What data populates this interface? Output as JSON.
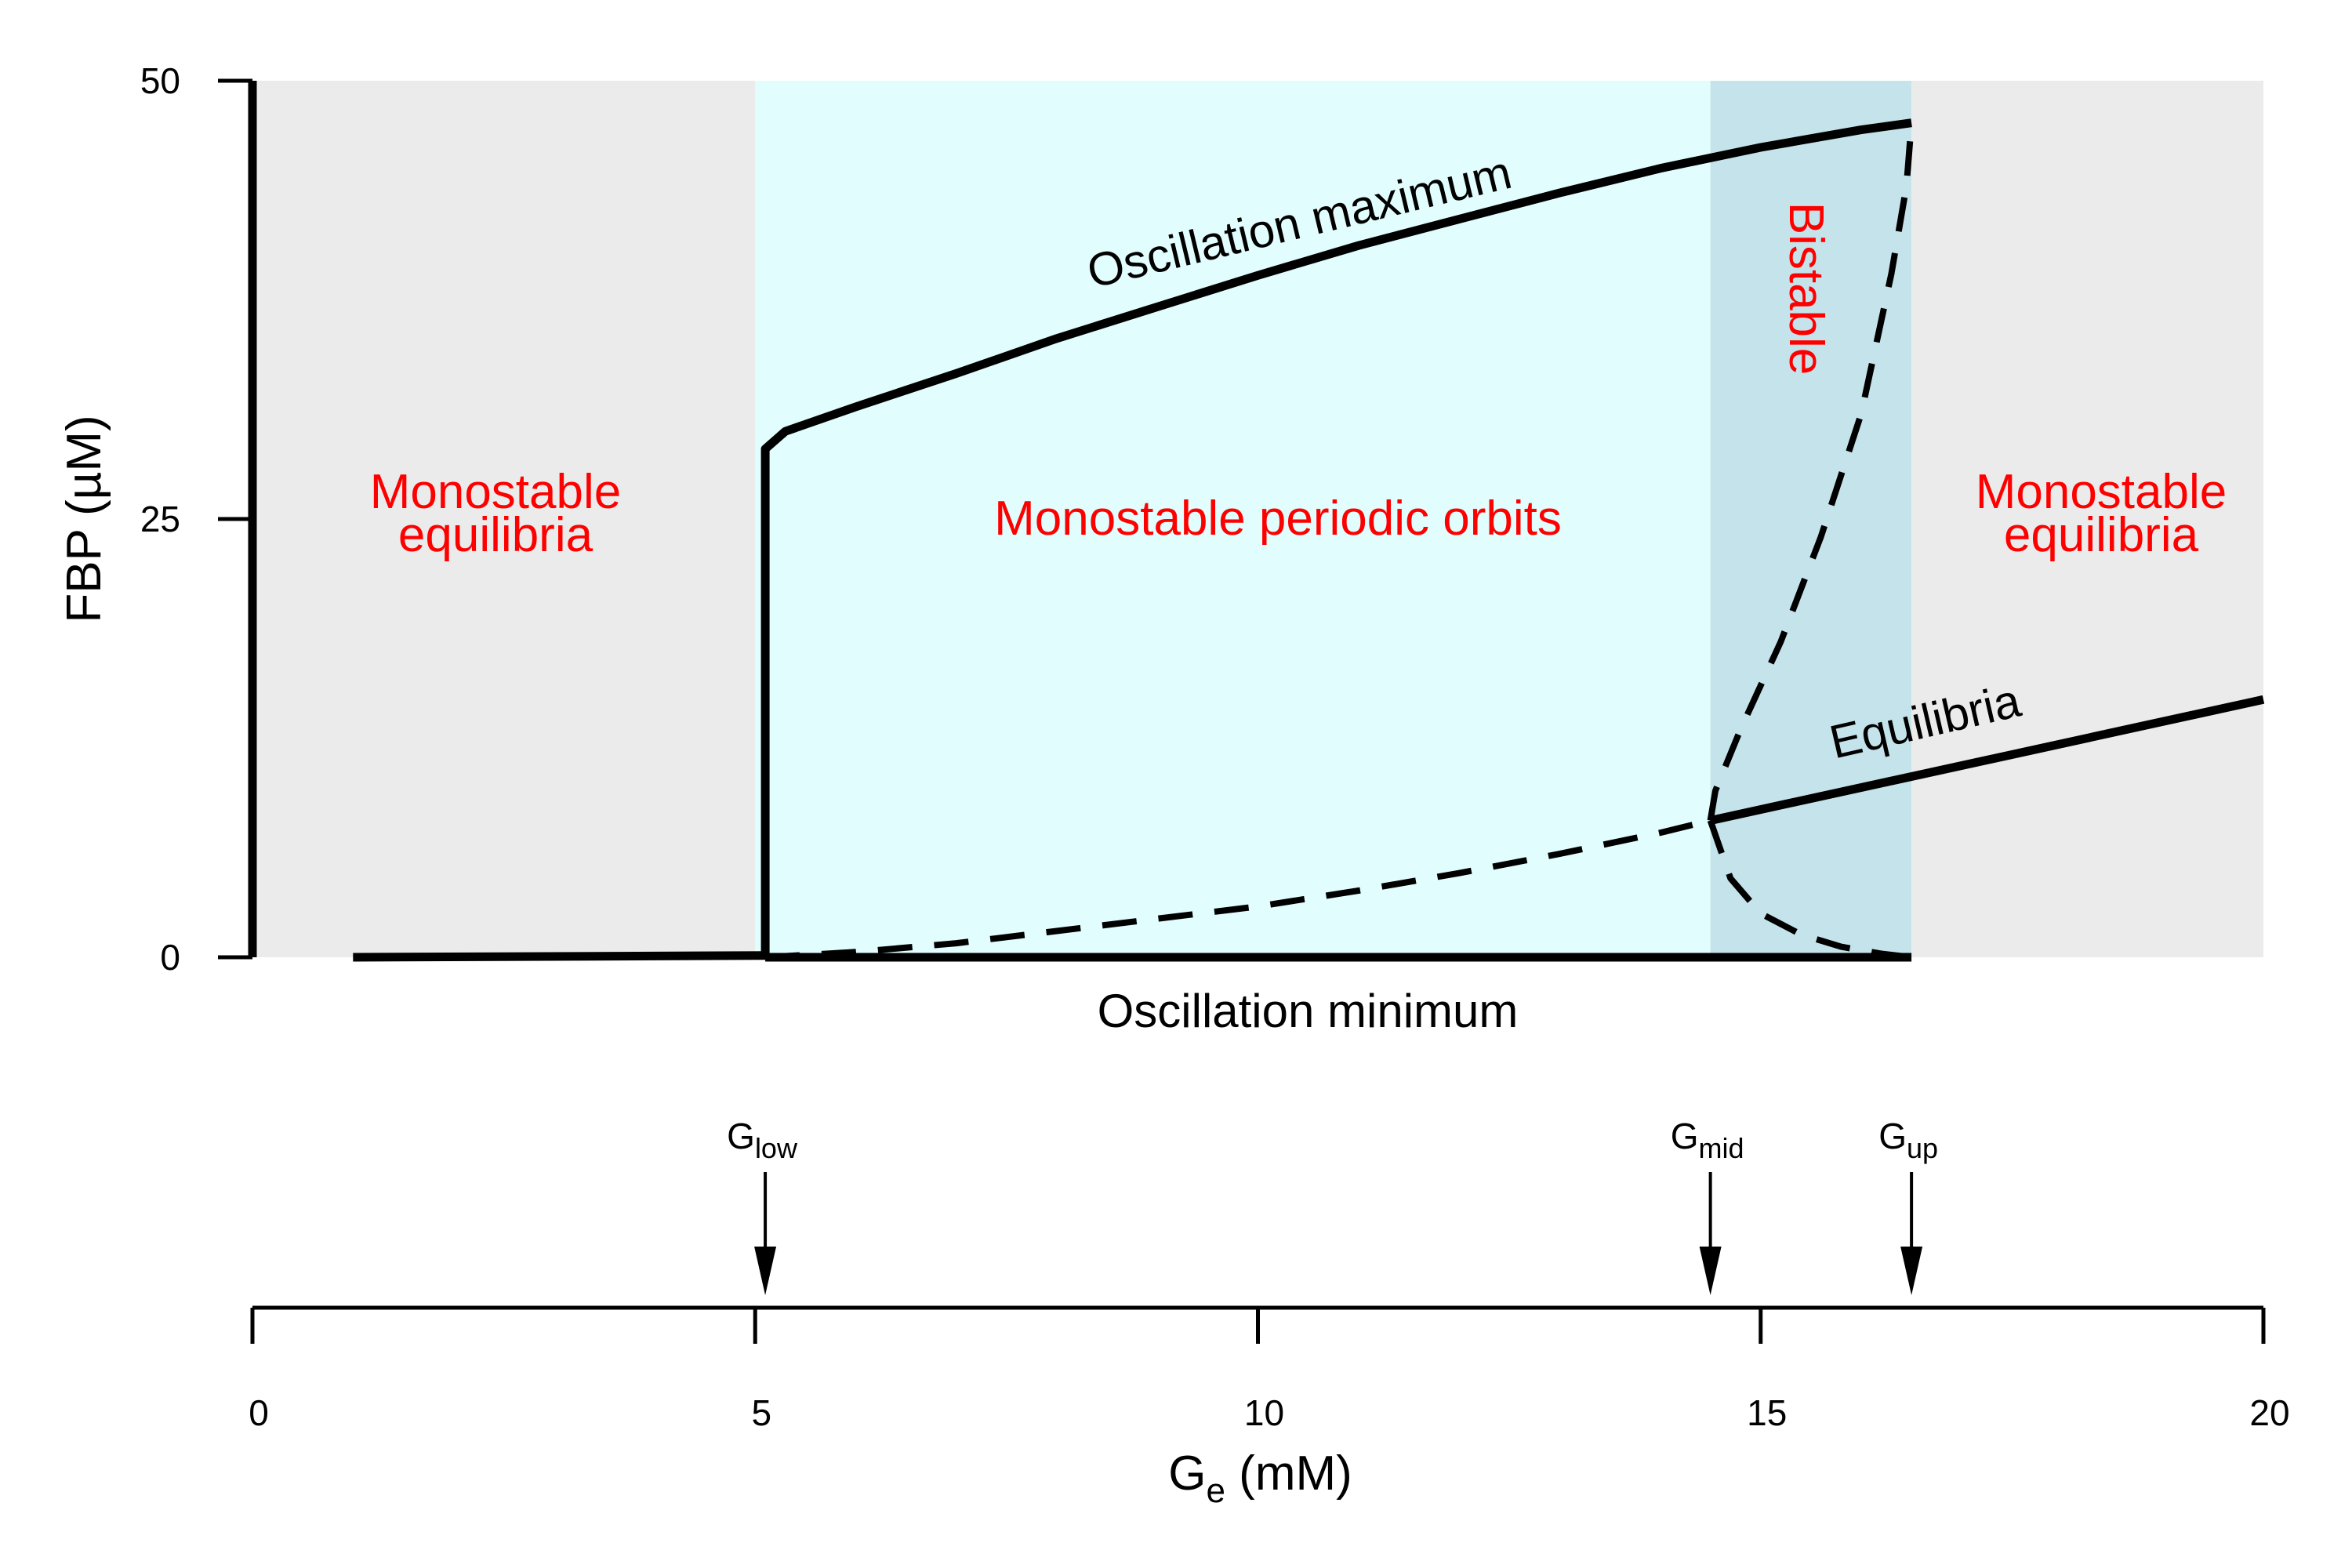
{
  "chart_data": {
    "type": "line",
    "xlabel": {
      "main": "G",
      "sub": "e",
      "rest": " (mM)"
    },
    "ylabel": "FBP (µM)",
    "xlim": [
      0,
      20
    ],
    "ylim": [
      0,
      50
    ],
    "x_ticks": [
      0,
      5,
      10,
      15,
      20
    ],
    "y_ticks": [
      0,
      25,
      50
    ],
    "regions": [
      {
        "key": "mono_eq_left",
        "x": [
          0,
          5
        ],
        "color": "#ebebeb",
        "label": [
          "Monostable",
          "equilibria"
        ]
      },
      {
        "key": "mono_periodic",
        "x": [
          5,
          14.5
        ],
        "color": "#e1fdfd",
        "label": [
          "Monostable periodic orbits"
        ]
      },
      {
        "key": "bistable",
        "x": [
          14.5,
          16.5
        ],
        "color": "#c5e3ea",
        "label": [
          "Bistable"
        ]
      },
      {
        "key": "mono_eq_right",
        "x": [
          16.5,
          20
        ],
        "color": "#ebebeb",
        "label": [
          "Monostable",
          "equilibria"
        ]
      }
    ],
    "series": [
      {
        "key": "low_equilibria",
        "style": "solid",
        "x": [
          1,
          5.1
        ],
        "y": [
          0,
          0.1
        ]
      },
      {
        "key": "oscillation_maximum",
        "style": "solid",
        "x": [
          5.1,
          5.1,
          5.3,
          6,
          7,
          8,
          9,
          10,
          11,
          12,
          13,
          14,
          15,
          16,
          16.5
        ],
        "y": [
          0,
          29,
          30,
          31.4,
          33.3,
          35.3,
          37.1,
          38.9,
          40.6,
          42.1,
          43.6,
          45,
          46.2,
          47.2,
          47.6
        ]
      },
      {
        "key": "oscillation_minimum",
        "style": "solid",
        "x": [
          5.1,
          16.5
        ],
        "y": [
          0,
          0
        ]
      },
      {
        "key": "unstable_equilibria",
        "style": "dashed",
        "x": [
          5.1,
          6,
          7,
          8,
          9,
          10,
          11,
          12,
          13,
          14,
          14.5
        ],
        "y": [
          0,
          0.3,
          0.8,
          1.5,
          2.2,
          2.9,
          3.8,
          4.8,
          5.9,
          7.1,
          7.8
        ]
      },
      {
        "key": "unstable_orbit_upper",
        "style": "dashed",
        "x": [
          14.5,
          14.55,
          14.8,
          15.2,
          15.6,
          16.0,
          16.3,
          16.45,
          16.5
        ],
        "y": [
          7.8,
          9.5,
          13,
          18,
          24,
          31,
          39,
          44,
          47.6
        ]
      },
      {
        "key": "unstable_orbit_lower",
        "style": "dashed",
        "x": [
          14.5,
          14.7,
          15.0,
          15.4,
          15.8,
          16.2,
          16.5
        ],
        "y": [
          7.8,
          4.5,
          2.5,
          1.3,
          0.6,
          0.2,
          0
        ]
      },
      {
        "key": "stable_equilibria",
        "style": "solid",
        "x": [
          14.5,
          20
        ],
        "y": [
          7.8,
          14.7
        ]
      }
    ],
    "curve_labels": {
      "oscillation_maximum": "Oscillation maximum",
      "oscillation_minimum": "Oscillation minimum",
      "equilibria": "Equilibria"
    },
    "markers": [
      {
        "key": "g_low",
        "x": 5.1,
        "main": "G",
        "sub": "low"
      },
      {
        "key": "g_mid",
        "x": 14.5,
        "main": "G",
        "sub": "mid"
      },
      {
        "key": "g_up",
        "x": 16.5,
        "main": "G",
        "sub": "up"
      }
    ]
  }
}
